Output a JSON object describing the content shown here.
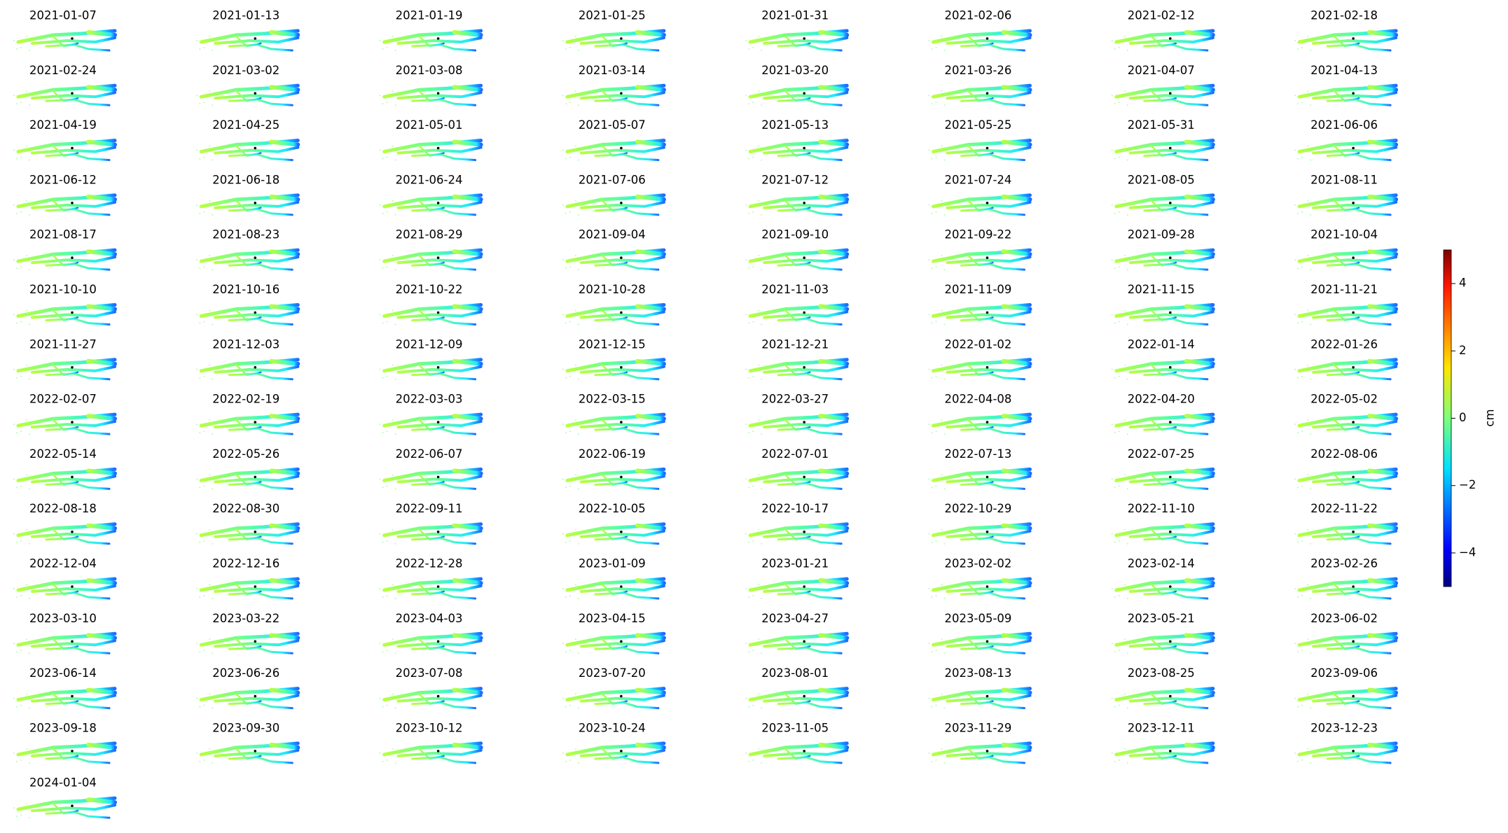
{
  "panels": [
    "2021-01-07",
    "2021-01-13",
    "2021-01-19",
    "2021-01-25",
    "2021-01-31",
    "2021-02-06",
    "2021-02-12",
    "2021-02-18",
    "2021-02-24",
    "2021-03-02",
    "2021-03-08",
    "2021-03-14",
    "2021-03-20",
    "2021-03-26",
    "2021-04-07",
    "2021-04-13",
    "2021-04-19",
    "2021-04-25",
    "2021-05-01",
    "2021-05-07",
    "2021-05-13",
    "2021-05-25",
    "2021-05-31",
    "2021-06-06",
    "2021-06-12",
    "2021-06-18",
    "2021-06-24",
    "2021-07-06",
    "2021-07-12",
    "2021-07-24",
    "2021-08-05",
    "2021-08-11",
    "2021-08-17",
    "2021-08-23",
    "2021-08-29",
    "2021-09-04",
    "2021-09-10",
    "2021-09-22",
    "2021-09-28",
    "2021-10-04",
    "2021-10-10",
    "2021-10-16",
    "2021-10-22",
    "2021-10-28",
    "2021-11-03",
    "2021-11-09",
    "2021-11-15",
    "2021-11-21",
    "2021-11-27",
    "2021-12-03",
    "2021-12-09",
    "2021-12-15",
    "2021-12-21",
    "2022-01-02",
    "2022-01-14",
    "2022-01-26",
    "2022-02-07",
    "2022-02-19",
    "2022-03-03",
    "2022-03-15",
    "2022-03-27",
    "2022-04-08",
    "2022-04-20",
    "2022-05-02",
    "2022-05-14",
    "2022-05-26",
    "2022-06-07",
    "2022-06-19",
    "2022-07-01",
    "2022-07-13",
    "2022-07-25",
    "2022-08-06",
    "2022-08-18",
    "2022-08-30",
    "2022-09-11",
    "2022-10-05",
    "2022-10-17",
    "2022-10-29",
    "2022-11-10",
    "2022-11-22",
    "2022-12-04",
    "2022-12-16",
    "2022-12-28",
    "2023-01-09",
    "2023-01-21",
    "2023-02-02",
    "2023-02-14",
    "2023-02-26",
    "2023-03-10",
    "2023-03-22",
    "2023-04-03",
    "2023-04-15",
    "2023-04-27",
    "2023-05-09",
    "2023-05-21",
    "2023-06-02",
    "2023-06-14",
    "2023-06-26",
    "2023-07-08",
    "2023-07-20",
    "2023-08-01",
    "2023-08-13",
    "2023-08-25",
    "2023-09-06",
    "2023-09-18",
    "2023-09-30",
    "2023-10-12",
    "2023-10-24",
    "2023-11-05",
    "2023-11-29",
    "2023-12-11",
    "2023-12-23",
    "2024-01-04"
  ],
  "colorbar": {
    "label": "cm",
    "colormap": "jet",
    "lim": [
      -5,
      5
    ],
    "ticks": [
      {
        "value": -4,
        "label": "−4"
      },
      {
        "value": -2,
        "label": "−2"
      },
      0,
      2,
      4
    ]
  }
}
